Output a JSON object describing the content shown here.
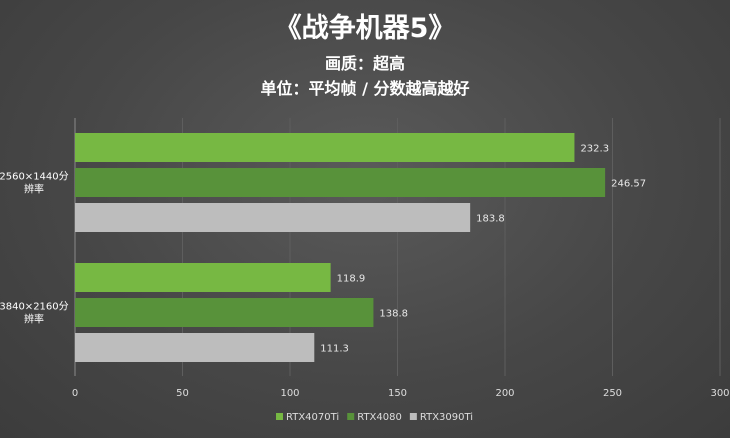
{
  "chart_data": {
    "type": "bar",
    "orientation": "horizontal",
    "title": "《战争机器5》",
    "subtitle": "画质：超高",
    "subtitle2": "单位：平均帧 / 分数越高越好",
    "categories": [
      [
        "2560×1440分",
        "辨率"
      ],
      [
        "3840×2160分",
        "辨率"
      ]
    ],
    "series": [
      {
        "name": "RTX4070Ti",
        "color": "#77b843",
        "values": [
          232.3,
          118.9
        ],
        "labels": [
          "232.3",
          "118.9"
        ]
      },
      {
        "name": "RTX4080",
        "color": "#58923a",
        "values": [
          246.57,
          138.8
        ],
        "labels": [
          "246.57",
          "138.8"
        ]
      },
      {
        "name": "RTX3090Ti",
        "color": "#bdbdbd",
        "values": [
          183.8,
          111.3
        ],
        "labels": [
          "183.8",
          "111.3"
        ]
      }
    ],
    "xlim": [
      0,
      300
    ],
    "xticks": [
      0,
      50,
      100,
      150,
      200,
      250,
      300
    ],
    "grid": true,
    "legend": "bottom"
  }
}
